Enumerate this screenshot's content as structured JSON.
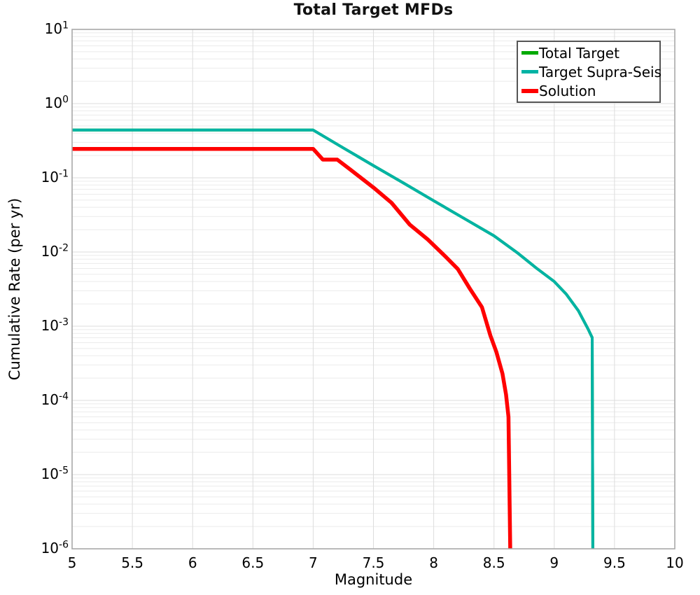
{
  "chart_data": {
    "type": "line",
    "title": "Total Target MFDs",
    "xlabel": "Magnitude",
    "ylabel": "Cumulative Rate (per yr)",
    "xlim": [
      5,
      10
    ],
    "ylim_log10": [
      -6,
      1
    ],
    "x_ticks": [
      5,
      5.5,
      6,
      6.5,
      7,
      7.5,
      8,
      8.5,
      9,
      9.5,
      10
    ],
    "y_tick_exponents": [
      1,
      0,
      -1,
      -2,
      -3,
      -4,
      -5,
      -6
    ],
    "grid": true,
    "log_y": true,
    "legend_position": "upper right",
    "colors": {
      "grid_major": "#dddddd",
      "grid_minor": "#ebebeb",
      "spine": "#a8a8a8",
      "background": "#ffffff"
    },
    "series": [
      {
        "name": "Total Target",
        "color": "#00AA00",
        "line_width": 4,
        "points": [
          [
            5.0,
            0.44
          ],
          [
            7.0,
            0.44
          ],
          [
            7.25,
            0.253
          ],
          [
            7.5,
            0.146
          ],
          [
            7.75,
            0.085
          ],
          [
            8.0,
            0.049
          ],
          [
            8.25,
            0.0285
          ],
          [
            8.5,
            0.0165
          ],
          [
            8.7,
            0.0096
          ],
          [
            8.85,
            0.0061
          ],
          [
            9.0,
            0.004
          ],
          [
            9.1,
            0.0027
          ],
          [
            9.2,
            0.00162
          ],
          [
            9.28,
            0.00092
          ],
          [
            9.315,
            0.0007
          ],
          [
            9.32,
            1e-06
          ]
        ]
      },
      {
        "name": "Target Supra-Seis",
        "color": "#00B3A4",
        "line_width": 4,
        "points": [
          [
            5.0,
            0.44
          ],
          [
            7.0,
            0.44
          ],
          [
            7.25,
            0.253
          ],
          [
            7.5,
            0.146
          ],
          [
            7.75,
            0.085
          ],
          [
            8.0,
            0.049
          ],
          [
            8.25,
            0.0285
          ],
          [
            8.5,
            0.0165
          ],
          [
            8.7,
            0.0096
          ],
          [
            8.85,
            0.0061
          ],
          [
            9.0,
            0.004
          ],
          [
            9.1,
            0.0027
          ],
          [
            9.2,
            0.00162
          ],
          [
            9.28,
            0.00092
          ],
          [
            9.315,
            0.0007
          ],
          [
            9.32,
            1e-06
          ]
        ]
      },
      {
        "name": "Solution",
        "color": "#FF0000",
        "line_width": 5.5,
        "points": [
          [
            5.0,
            0.245
          ],
          [
            7.0,
            0.245
          ],
          [
            7.08,
            0.176
          ],
          [
            7.2,
            0.176
          ],
          [
            7.3,
            0.132
          ],
          [
            7.5,
            0.074
          ],
          [
            7.65,
            0.046
          ],
          [
            7.8,
            0.0235
          ],
          [
            7.95,
            0.0148
          ],
          [
            8.1,
            0.0086
          ],
          [
            8.2,
            0.0059
          ],
          [
            8.3,
            0.0032
          ],
          [
            8.4,
            0.0018
          ],
          [
            8.47,
            0.00075
          ],
          [
            8.52,
            0.00045
          ],
          [
            8.57,
            0.00023
          ],
          [
            8.6,
            0.00012
          ],
          [
            8.62,
            6e-05
          ],
          [
            8.635,
            1e-06
          ]
        ]
      }
    ]
  }
}
